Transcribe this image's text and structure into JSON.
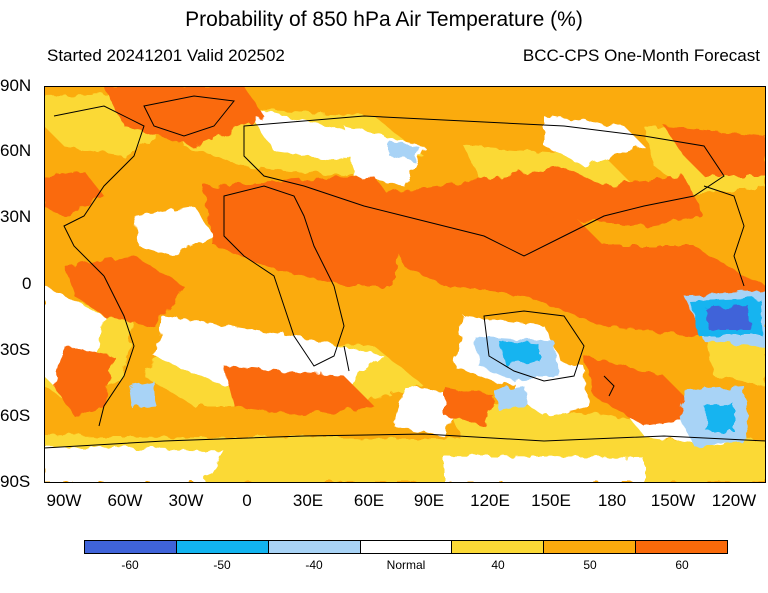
{
  "header": {
    "title": "Probability of 850 hPa Air Temperature (%)",
    "started": "Started 20241201  Valid 202502",
    "source": "BCC-CPS One-Month Forecast"
  },
  "map": {
    "lat_labels": [
      "90N",
      "60N",
      "30N",
      "0",
      "30S",
      "60S",
      "90S"
    ],
    "lon_labels": [
      "90W",
      "60W",
      "30W",
      "0",
      "30E",
      "60E",
      "90E",
      "120E",
      "150E",
      "180",
      "150W",
      "120W"
    ],
    "colors": {
      "below_60": "#3f63d9",
      "below_50": "#12b4f0",
      "below_40": "#a8d3f6",
      "normal": "#ffffff",
      "above_40": "#fbd936",
      "above_50": "#fbab0d",
      "above_60": "#fa6a0a"
    }
  },
  "colorbar": {
    "boxes": [
      "#3f63d9",
      "#12b4f0",
      "#a8d3f6",
      "#ffffff",
      "#fbd936",
      "#fbab0d",
      "#fa6a0a"
    ],
    "labels": [
      "-60",
      "-50",
      "-40",
      "Normal",
      "40",
      "50",
      "60"
    ]
  }
}
